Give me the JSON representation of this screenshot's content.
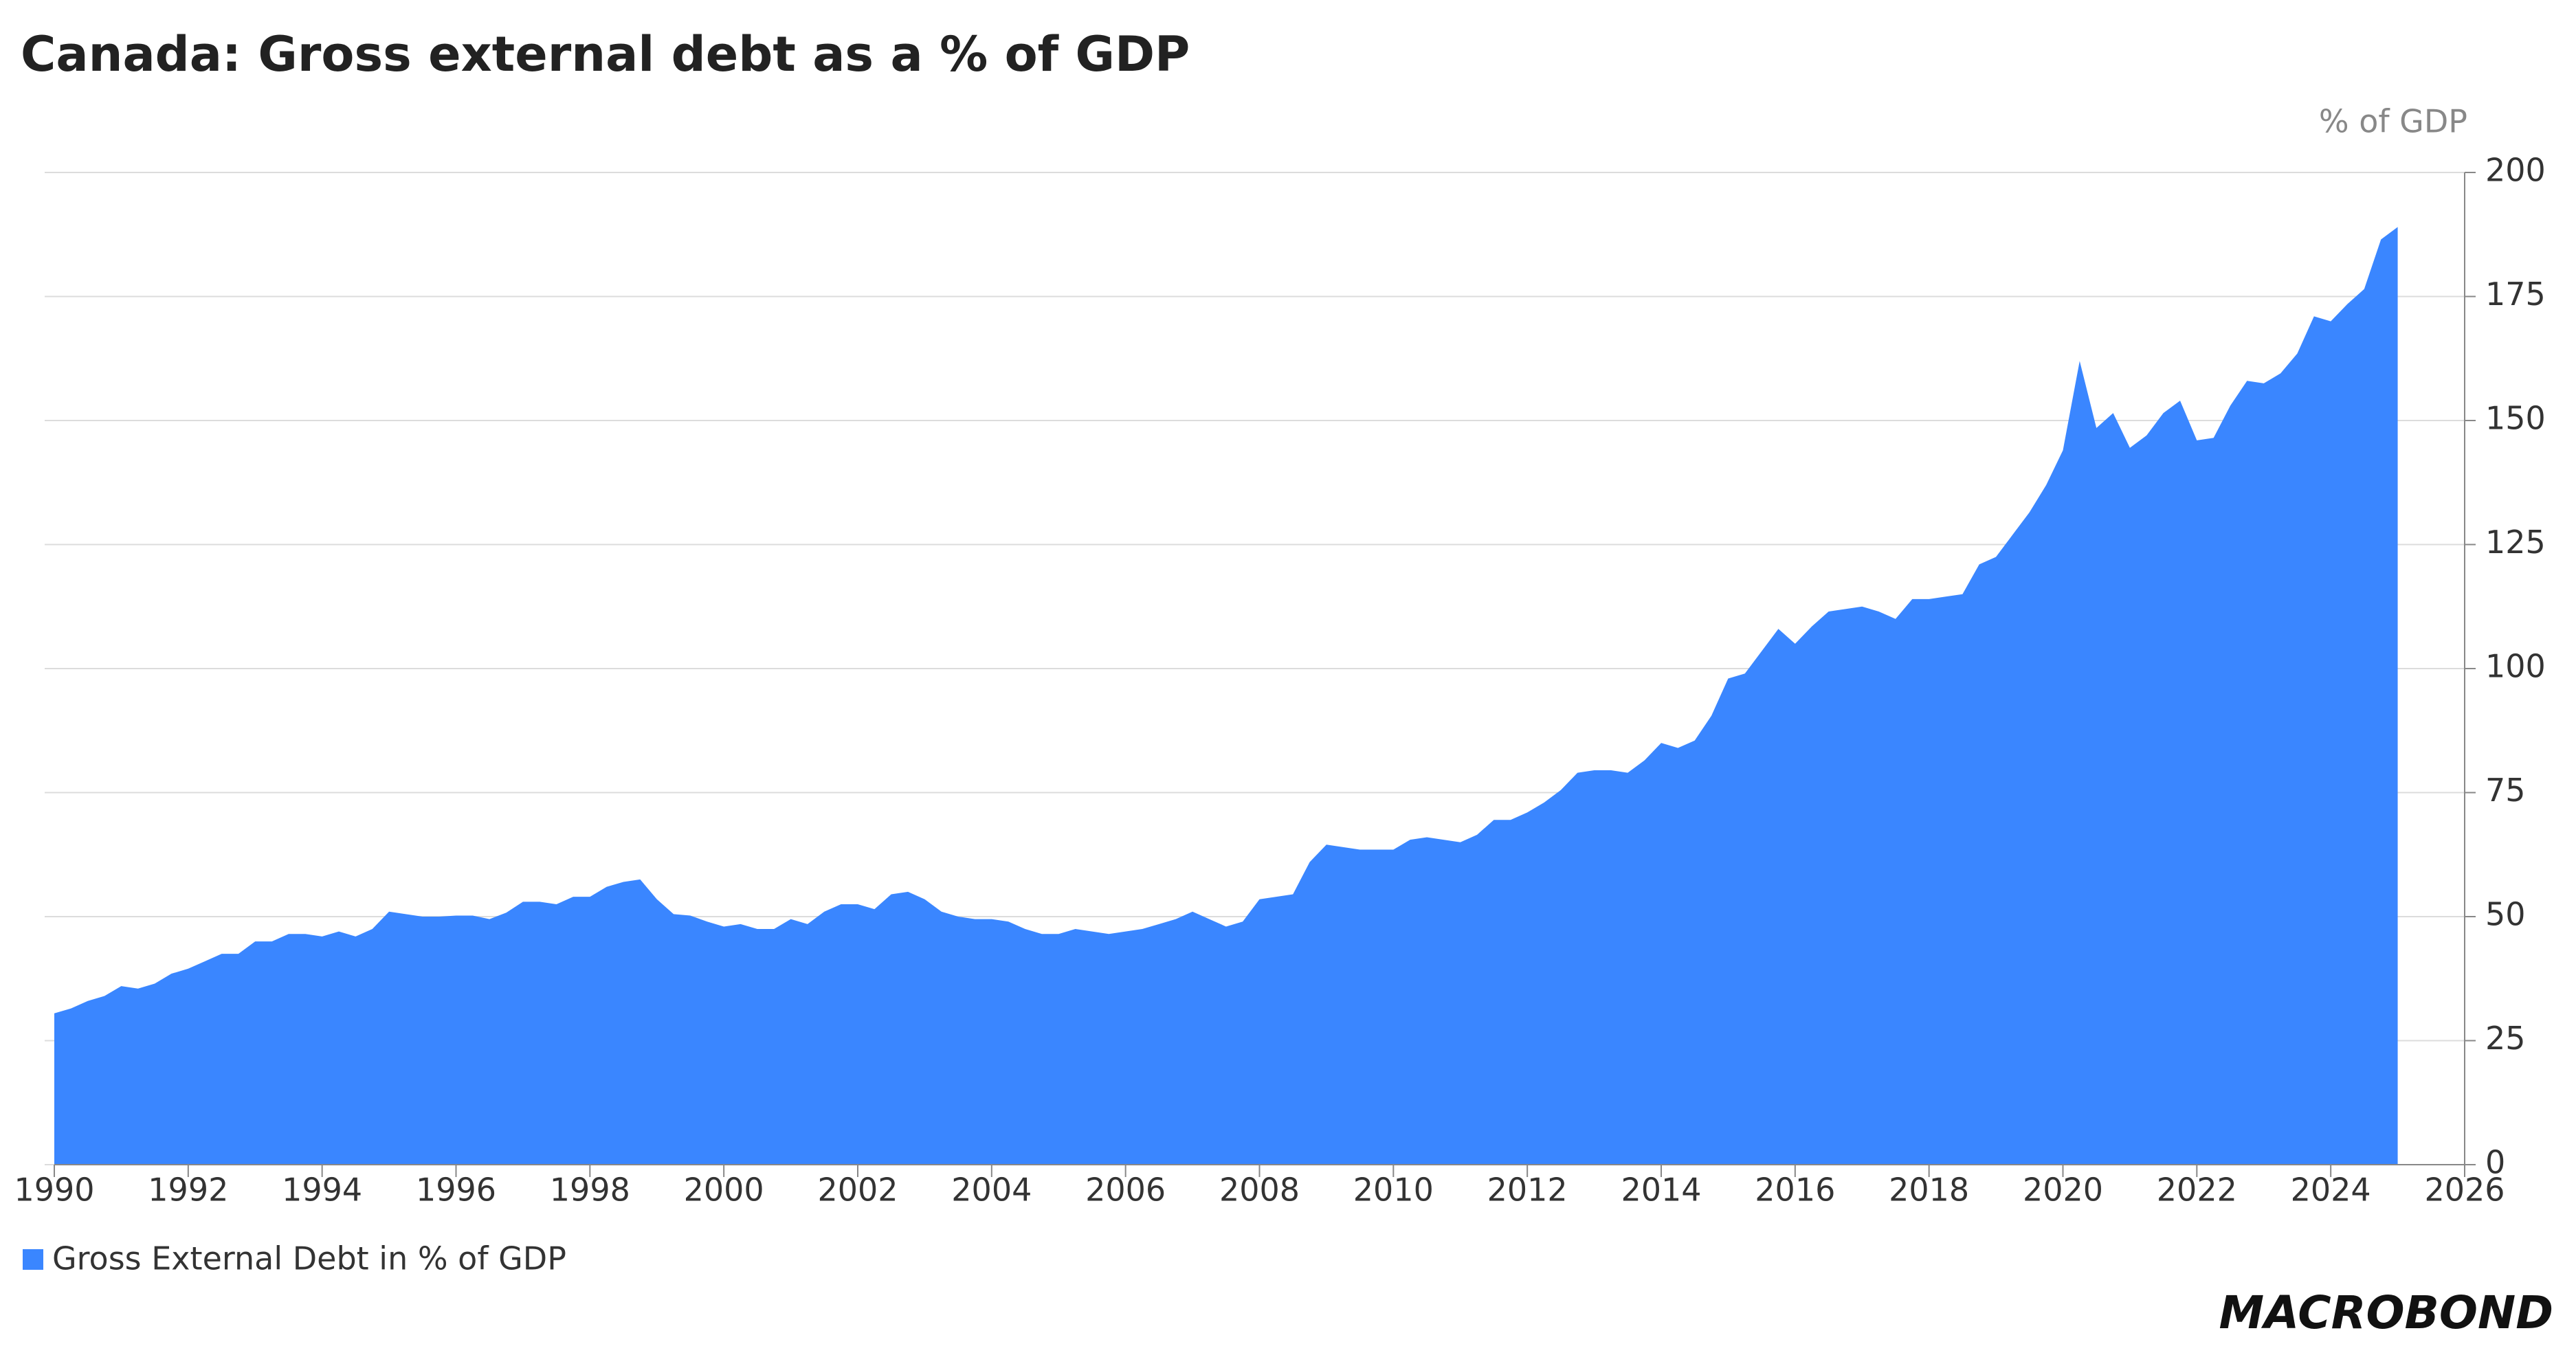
{
  "chart_data": {
    "type": "area",
    "title": "Canada: Gross external debt as a % of GDP",
    "y_axis_label": "% of GDP",
    "logo": "MACROBOND",
    "x": [
      1990,
      1990.25,
      1990.5,
      1990.75,
      1991,
      1991.25,
      1991.5,
      1991.75,
      1992,
      1992.25,
      1992.5,
      1992.75,
      1993,
      1993.25,
      1993.5,
      1993.75,
      1994,
      1994.25,
      1994.5,
      1994.75,
      1995,
      1995.25,
      1995.5,
      1995.75,
      1996,
      1996.25,
      1996.5,
      1996.75,
      1997,
      1997.25,
      1997.5,
      1997.75,
      1998,
      1998.25,
      1998.5,
      1998.75,
      1999,
      1999.25,
      1999.5,
      1999.75,
      2000,
      2000.25,
      2000.5,
      2000.75,
      2001,
      2001.25,
      2001.5,
      2001.75,
      2002,
      2002.25,
      2002.5,
      2002.75,
      2003,
      2003.25,
      2003.5,
      2003.75,
      2004,
      2004.25,
      2004.5,
      2004.75,
      2005,
      2005.25,
      2005.5,
      2005.75,
      2006,
      2006.25,
      2006.5,
      2006.75,
      2007,
      2007.25,
      2007.5,
      2007.75,
      2008,
      2008.25,
      2008.5,
      2008.75,
      2009,
      2009.25,
      2009.5,
      2009.75,
      2010,
      2010.25,
      2010.5,
      2010.75,
      2011,
      2011.25,
      2011.5,
      2011.75,
      2012,
      2012.25,
      2012.5,
      2012.75,
      2013,
      2013.25,
      2013.5,
      2013.75,
      2014,
      2014.25,
      2014.5,
      2014.75,
      2015,
      2015.25,
      2015.5,
      2015.75,
      2016,
      2016.25,
      2016.5,
      2016.75,
      2017,
      2017.25,
      2017.5,
      2017.75,
      2018,
      2018.25,
      2018.5,
      2018.75,
      2019,
      2019.25,
      2019.5,
      2019.75,
      2020,
      2020.25,
      2020.5,
      2020.75,
      2021,
      2021.25,
      2021.5,
      2021.75,
      2022,
      2022.25,
      2022.5,
      2022.75,
      2023,
      2023.25,
      2023.5,
      2023.75,
      2024,
      2024.25,
      2024.5,
      2024.75,
      2025
    ],
    "series": [
      {
        "name": "Gross External Debt in % of GDP",
        "color": "#3a86ff",
        "values": [
          30.5,
          31.5,
          33,
          34,
          36,
          35.5,
          36.5,
          38.5,
          39.5,
          41,
          42.5,
          42.5,
          45,
          45,
          46.5,
          46.5,
          46,
          47,
          46,
          47.5,
          51,
          50.5,
          50,
          50,
          50.2,
          50.2,
          49.5,
          50.8,
          53,
          53,
          52.5,
          54,
          54,
          56,
          57,
          57.5,
          53.5,
          50.5,
          50.2,
          49,
          48,
          48.5,
          47.5,
          47.5,
          49.5,
          48.5,
          51,
          52.5,
          52.5,
          51.5,
          54.5,
          55,
          53.5,
          51,
          50,
          49.5,
          49.5,
          49,
          47.5,
          46.5,
          46.5,
          47.5,
          47,
          46.5,
          47,
          47.5,
          48.5,
          49.5,
          51,
          49.5,
          48,
          49,
          53.5,
          54,
          54.5,
          61,
          64.5,
          64,
          63.5,
          63.5,
          63.5,
          65.5,
          66,
          65.5,
          65,
          66.5,
          69.5,
          69.5,
          71,
          73,
          75.5,
          79,
          79.5,
          79.5,
          79,
          81.5,
          85,
          84,
          85.5,
          90.5,
          98,
          99,
          103.5,
          108,
          105,
          108.5,
          111.5,
          112,
          112.5,
          111.5,
          110,
          114,
          114,
          114.5,
          115,
          121,
          122.5,
          127,
          131.5,
          137,
          144,
          162,
          148.5,
          151.5,
          144.5,
          147,
          151.5,
          154,
          146,
          146.5,
          153,
          158,
          157.5,
          159.5,
          163.5,
          171,
          170,
          173.5,
          176.5,
          186.5,
          189
        ]
      }
    ],
    "xlim": [
      1990,
      2026
    ],
    "xticks": [
      1990,
      1992,
      1994,
      1996,
      1998,
      2000,
      2002,
      2004,
      2006,
      2008,
      2010,
      2012,
      2014,
      2016,
      2018,
      2020,
      2022,
      2024,
      2026
    ],
    "ylim": [
      0,
      200
    ],
    "yticks": [
      0,
      25,
      50,
      75,
      100,
      125,
      150,
      175,
      200
    ],
    "grid": true
  }
}
